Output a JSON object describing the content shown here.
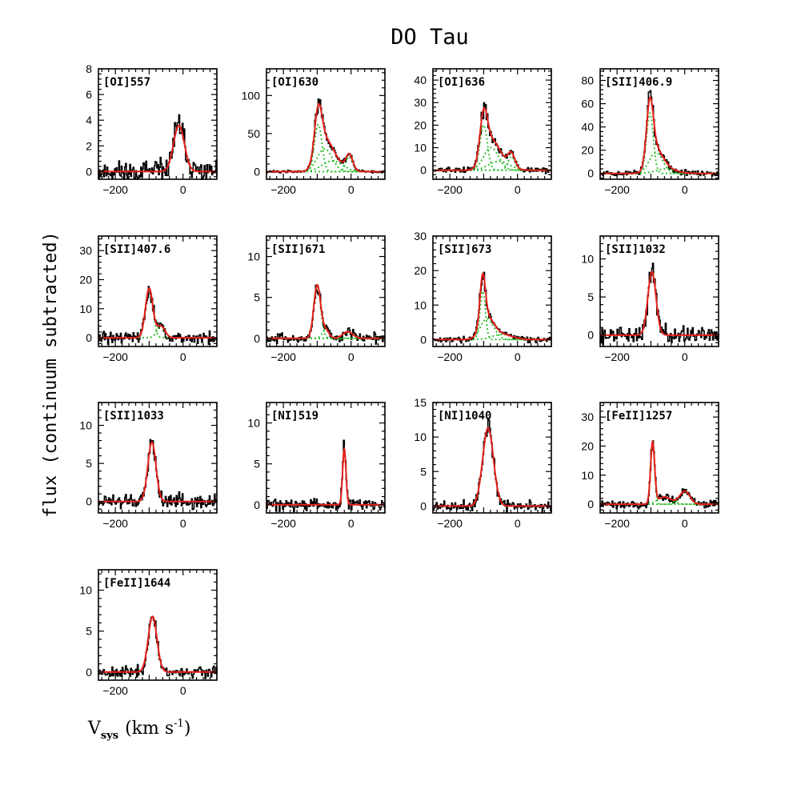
{
  "title": "DO Tau",
  "ylabel": "flux (continuum subtracted)",
  "xlabel": {
    "main": "V",
    "sub": "sys",
    "unit": "(km s",
    "sup": "-1",
    "close": ")"
  },
  "colors": {
    "observed": "#000000",
    "fit": "#e8201a",
    "components": "#22bb22"
  },
  "chart_data": [
    {
      "type": "line",
      "label": "[OI]557",
      "xlim": [
        -250,
        100
      ],
      "ylim": [
        -0.6,
        8
      ],
      "yticks": [
        0,
        2,
        4,
        6,
        8
      ],
      "xticks": [
        -200,
        0
      ],
      "series": [
        {
          "role": "observed",
          "noise": 0.7,
          "seed": 11
        },
        {
          "role": "fit",
          "components": [
            {
              "a": 3.6,
              "mu": -12,
              "sigma": 16
            }
          ]
        }
      ]
    },
    {
      "type": "line",
      "label": "[OI]630",
      "xlim": [
        -250,
        100
      ],
      "ylim": [
        -10,
        135
      ],
      "yticks": [
        0,
        50,
        100
      ],
      "xticks": [
        -200,
        0
      ],
      "series": [
        {
          "role": "observed",
          "noise": 1.5,
          "seed": 12
        },
        {
          "role": "fit",
          "components": [
            {
              "a": 62,
              "mu": -97,
              "sigma": 11
            },
            {
              "a": 30,
              "mu": -78,
              "sigma": 22
            },
            {
              "a": 14,
              "mu": -55,
              "sigma": 30
            },
            {
              "a": 20,
              "mu": -5,
              "sigma": 10
            }
          ]
        }
      ]
    },
    {
      "type": "line",
      "label": "[OI]636",
      "xlim": [
        -250,
        100
      ],
      "ylim": [
        -4,
        45
      ],
      "yticks": [
        0,
        10,
        20,
        30,
        40
      ],
      "xticks": [
        -200,
        0
      ],
      "series": [
        {
          "role": "observed",
          "noise": 0.9,
          "seed": 13
        },
        {
          "role": "fit",
          "components": [
            {
              "a": 20,
              "mu": -100,
              "sigma": 11
            },
            {
              "a": 10,
              "mu": -78,
              "sigma": 22
            },
            {
              "a": 4,
              "mu": -55,
              "sigma": 30
            },
            {
              "a": 6,
              "mu": -18,
              "sigma": 10
            }
          ]
        }
      ]
    },
    {
      "type": "line",
      "label": "[SII]406.9",
      "xlim": [
        -250,
        100
      ],
      "ylim": [
        -5,
        90
      ],
      "yticks": [
        0,
        20,
        40,
        60,
        80
      ],
      "xticks": [
        -200,
        0
      ],
      "series": [
        {
          "role": "observed",
          "noise": 2.0,
          "seed": 14
        },
        {
          "role": "fit",
          "components": [
            {
              "a": 52,
              "mu": -103,
              "sigma": 10
            },
            {
              "a": 18,
              "mu": -85,
              "sigma": 20
            },
            {
              "a": 4,
              "mu": -55,
              "sigma": 30
            }
          ]
        }
      ]
    },
    {
      "type": "line",
      "label": "[SII]407.6",
      "xlim": [
        -250,
        100
      ],
      "ylim": [
        -3,
        35
      ],
      "yticks": [
        0,
        10,
        20,
        30
      ],
      "xticks": [
        -200,
        0
      ],
      "series": [
        {
          "role": "observed",
          "noise": 1.6,
          "seed": 15
        },
        {
          "role": "fit",
          "components": [
            {
              "a": 17,
              "mu": -100,
              "sigma": 11
            },
            {
              "a": 4,
              "mu": -65,
              "sigma": 12
            }
          ]
        }
      ]
    },
    {
      "type": "line",
      "label": "[SII]671",
      "xlim": [
        -250,
        100
      ],
      "ylim": [
        -1,
        12.5
      ],
      "yticks": [
        0,
        5,
        10
      ],
      "xticks": [
        -200,
        0
      ],
      "series": [
        {
          "role": "observed",
          "noise": 0.5,
          "seed": 16
        },
        {
          "role": "fit",
          "components": [
            {
              "a": 6.5,
              "mu": -100,
              "sigma": 10
            },
            {
              "a": 1.0,
              "mu": -75,
              "sigma": 10
            },
            {
              "a": 0.8,
              "mu": -10,
              "sigma": 15
            }
          ]
        }
      ]
    },
    {
      "type": "line",
      "label": "[SII]673",
      "xlim": [
        -250,
        100
      ],
      "ylim": [
        -2,
        30
      ],
      "yticks": [
        0,
        10,
        20,
        30
      ],
      "xticks": [
        -200,
        0
      ],
      "series": [
        {
          "role": "observed",
          "noise": 0.6,
          "seed": 17
        },
        {
          "role": "fit",
          "components": [
            {
              "a": 14,
              "mu": -103,
              "sigma": 8
            },
            {
              "a": 6,
              "mu": -90,
              "sigma": 20
            },
            {
              "a": 1.5,
              "mu": -45,
              "sigma": 30
            }
          ]
        }
      ]
    },
    {
      "type": "line",
      "label": "[SII]1032",
      "xlim": [
        -250,
        100
      ],
      "ylim": [
        -1.5,
        13
      ],
      "yticks": [
        0,
        5,
        10
      ],
      "xticks": [
        -200,
        0
      ],
      "series": [
        {
          "role": "observed",
          "noise": 0.9,
          "seed": 18
        },
        {
          "role": "fit",
          "components": [
            {
              "a": 8.3,
              "mu": -97,
              "sigma": 12
            }
          ]
        }
      ]
    },
    {
      "type": "line",
      "label": "[SII]1033",
      "xlim": [
        -250,
        100
      ],
      "ylim": [
        -1.5,
        13
      ],
      "yticks": [
        0,
        5,
        10
      ],
      "xticks": [
        -200,
        0
      ],
      "series": [
        {
          "role": "observed",
          "noise": 0.8,
          "seed": 19
        },
        {
          "role": "fit",
          "components": [
            {
              "a": 7.8,
              "mu": -92,
              "sigma": 12
            }
          ]
        }
      ]
    },
    {
      "type": "line",
      "label": "[NI]519",
      "xlim": [
        -250,
        100
      ],
      "ylim": [
        -1,
        12.5
      ],
      "yticks": [
        0,
        5,
        10
      ],
      "xticks": [
        -200,
        0
      ],
      "series": [
        {
          "role": "observed",
          "noise": 0.55,
          "seed": 20
        },
        {
          "role": "fit",
          "components": [
            {
              "a": 6.8,
              "mu": -20,
              "sigma": 5
            }
          ]
        }
      ]
    },
    {
      "type": "line",
      "label": "[NI]1040",
      "xlim": [
        -250,
        100
      ],
      "ylim": [
        -1,
        15
      ],
      "yticks": [
        0,
        5,
        10,
        15
      ],
      "xticks": [
        -200,
        0
      ],
      "series": [
        {
          "role": "observed",
          "noise": 0.6,
          "seed": 21
        },
        {
          "role": "fit",
          "components": [
            {
              "a": 11.3,
              "mu": -87,
              "sigma": 16
            }
          ]
        }
      ]
    },
    {
      "type": "line",
      "label": "[FeII]1257",
      "xlim": [
        -250,
        100
      ],
      "ylim": [
        -3,
        35
      ],
      "yticks": [
        0,
        10,
        20,
        30
      ],
      "xticks": [
        -200,
        0
      ],
      "series": [
        {
          "role": "observed",
          "noise": 1.1,
          "seed": 22
        },
        {
          "role": "fit",
          "components": [
            {
              "a": 21,
              "mu": -95,
              "sigma": 6
            },
            {
              "a": 2.5,
              "mu": -60,
              "sigma": 20
            },
            {
              "a": 4.5,
              "mu": 0,
              "sigma": 15
            }
          ]
        }
      ]
    },
    {
      "type": "line",
      "label": "[FeII]1644",
      "xlim": [
        -250,
        100
      ],
      "ylim": [
        -1,
        12.5
      ],
      "yticks": [
        0,
        5,
        10
      ],
      "xticks": [
        -200,
        0
      ],
      "series": [
        {
          "role": "observed",
          "noise": 0.6,
          "seed": 23
        },
        {
          "role": "fit",
          "components": [
            {
              "a": 6.8,
              "mu": -90,
              "sigma": 13
            }
          ]
        }
      ]
    }
  ]
}
